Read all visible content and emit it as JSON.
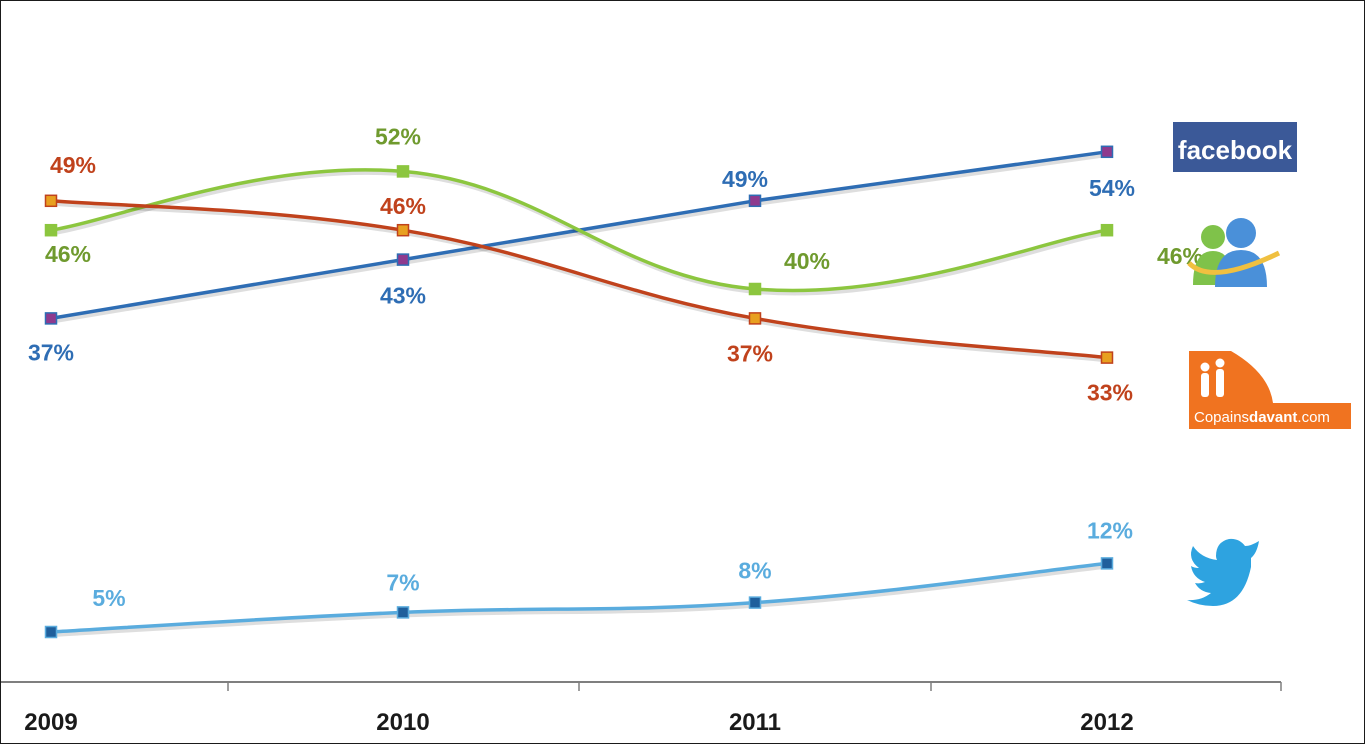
{
  "chart_data": {
    "type": "line",
    "title": "",
    "xlabel": "",
    "ylabel": "",
    "categories": [
      "2009",
      "2010",
      "2011",
      "2012"
    ],
    "ylim": [
      0,
      70
    ],
    "grid": false,
    "legend": "logos-right",
    "series": [
      {
        "brand": "facebook",
        "values": [
          37,
          43,
          49,
          54
        ],
        "labels": [
          "37%",
          "43%",
          "49%",
          "54%"
        ],
        "color": "#2e6db4",
        "label_color": "#2e6db4",
        "marker": "#8e3a8e",
        "smooth": false
      },
      {
        "brand": "messenger",
        "values": [
          46,
          52,
          40,
          46
        ],
        "labels": [
          "46%",
          "52%",
          "40%",
          "46%"
        ],
        "color": "#8cc63f",
        "label_color": "#6f9a2e",
        "marker": "#8cc63f",
        "smooth": true
      },
      {
        "brand": "copainsdavant",
        "values": [
          49,
          46,
          37,
          33
        ],
        "labels": [
          "49%",
          "46%",
          "37%",
          "33%"
        ],
        "color": "#c0421c",
        "label_color": "#c0421c",
        "marker": "#e8a020",
        "smooth": true
      },
      {
        "brand": "twitter",
        "values": [
          5,
          7,
          8,
          12
        ],
        "labels": [
          "5%",
          "7%",
          "8%",
          "12%"
        ],
        "color": "#5aacde",
        "label_color": "#5aacde",
        "marker": "#1f5f9c",
        "smooth": true
      }
    ]
  },
  "logos": {
    "facebook": {
      "text": "facebook",
      "bg": "#3b5998",
      "fg": "#ffffff"
    },
    "copainsdavant": {
      "text_a": "Copains",
      "text_b": "davant",
      "text_c": ".com",
      "bg": "#f07320",
      "fg": "#ffffff"
    },
    "twitter": {
      "color": "#2ea3e0"
    },
    "messenger": {
      "front": "#4a90d9",
      "back": "#7fc24a",
      "ring": "#f0c040"
    }
  }
}
